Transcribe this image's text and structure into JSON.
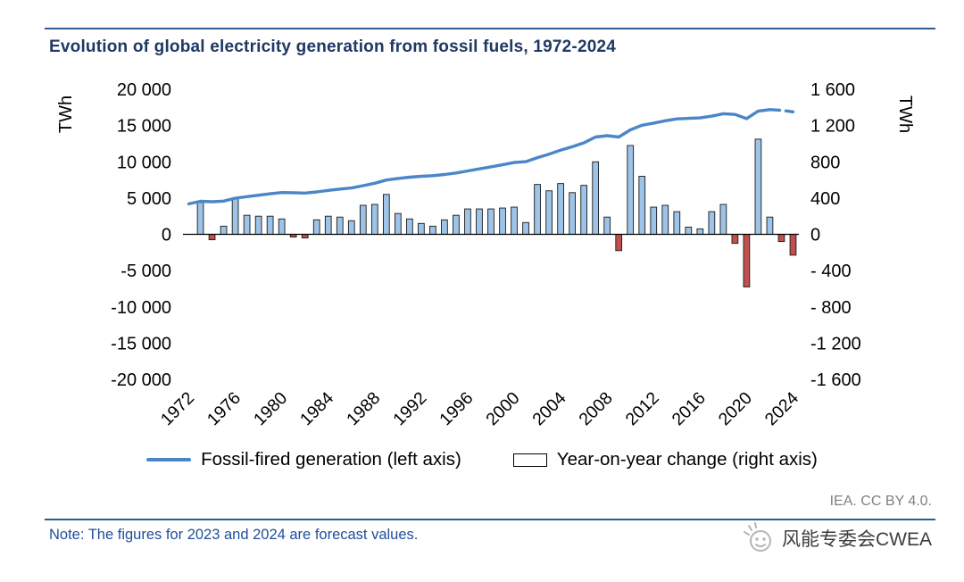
{
  "header": {
    "title": "Evolution of global electricity generation from fossil fuels, 1972-2024"
  },
  "legend": {
    "line_label": "Fossil-fired generation (left axis)",
    "bar_label": "Year-on-year change (right axis)"
  },
  "footer": {
    "credit": "IEA. CC BY 4.0.",
    "note": "Note: The figures for 2023 and 2024 are forecast values.",
    "watermark": "风能专委会CWEA"
  },
  "colors": {
    "title": "#1f3864",
    "rule": "#2f5b94",
    "line": "#4a86c8",
    "bar_positive": "#9dc3e6",
    "bar_negative": "#c0504d",
    "bar_outline": "#1a1a1a",
    "note_text": "#1f4e9c",
    "credit_text": "#808080",
    "watermark_text": "#3d3d3d",
    "logo": "#b5b5b5",
    "axis_text": "#000000"
  },
  "chart_data": {
    "type": "line+bar",
    "title": "Evolution of global electricity generation from fossil fuels, 1972-2024",
    "grid": false,
    "legend_position": "bottom",
    "x": [
      1972,
      1973,
      1974,
      1975,
      1976,
      1977,
      1978,
      1979,
      1980,
      1981,
      1982,
      1983,
      1984,
      1985,
      1986,
      1987,
      1988,
      1989,
      1990,
      1991,
      1992,
      1993,
      1994,
      1995,
      1996,
      1997,
      1998,
      1999,
      2000,
      2001,
      2002,
      2003,
      2004,
      2005,
      2006,
      2007,
      2008,
      2009,
      2010,
      2011,
      2012,
      2013,
      2014,
      2015,
      2016,
      2017,
      2018,
      2019,
      2020,
      2021,
      2022,
      2023,
      2024
    ],
    "x_tick_labels": [
      "1972",
      "1976",
      "1980",
      "1984",
      "1988",
      "1992",
      "1996",
      "2000",
      "2004",
      "2008",
      "2012",
      "2016",
      "2020",
      "2024"
    ],
    "left_axis": {
      "label": "TWh",
      "min": -20000,
      "max": 20000,
      "tick_step": 5000,
      "tick_labels": [
        "20 000",
        "15 000",
        "10 000",
        "5 000",
        "0",
        "-5 000",
        "-10 000",
        "-15 000",
        "-20 000"
      ]
    },
    "right_axis": {
      "label": "TWh",
      "min": -1600,
      "max": 1600,
      "tick_step": 400,
      "tick_labels": [
        "1 600",
        "1 200",
        "800",
        "400",
        "0",
        "- 400",
        "- 800",
        "-1 200",
        "-1 600"
      ]
    },
    "series": [
      {
        "name": "Fossil-fired generation (left axis)",
        "type": "line",
        "axis": "left",
        "dashed_from_x": 2022,
        "values": [
          4200,
          4550,
          4490,
          4580,
          4980,
          5190,
          5390,
          5590,
          5760,
          5730,
          5690,
          5850,
          6050,
          6240,
          6390,
          6710,
          7040,
          7480,
          7710,
          7880,
          8000,
          8090,
          8250,
          8460,
          8740,
          9020,
          9300,
          9590,
          9890,
          10020,
          10570,
          11050,
          11610,
          12070,
          12610,
          13410,
          13600,
          13420,
          14400,
          15040,
          15340,
          15660,
          15910,
          15990,
          16050,
          16300,
          16630,
          16530,
          15950,
          17000,
          17190,
          17110,
          16880
        ]
      },
      {
        "name": "Year-on-year change (right axis)",
        "type": "bar",
        "axis": "right",
        "values": [
          null,
          350,
          -60,
          90,
          400,
          210,
          200,
          200,
          170,
          -30,
          -40,
          160,
          200,
          190,
          150,
          320,
          330,
          440,
          230,
          170,
          120,
          90,
          160,
          210,
          280,
          280,
          280,
          290,
          300,
          130,
          550,
          480,
          560,
          460,
          540,
          800,
          190,
          -180,
          980,
          640,
          300,
          320,
          250,
          80,
          60,
          250,
          330,
          -100,
          -580,
          1050,
          190,
          -80,
          -230
        ]
      }
    ]
  }
}
